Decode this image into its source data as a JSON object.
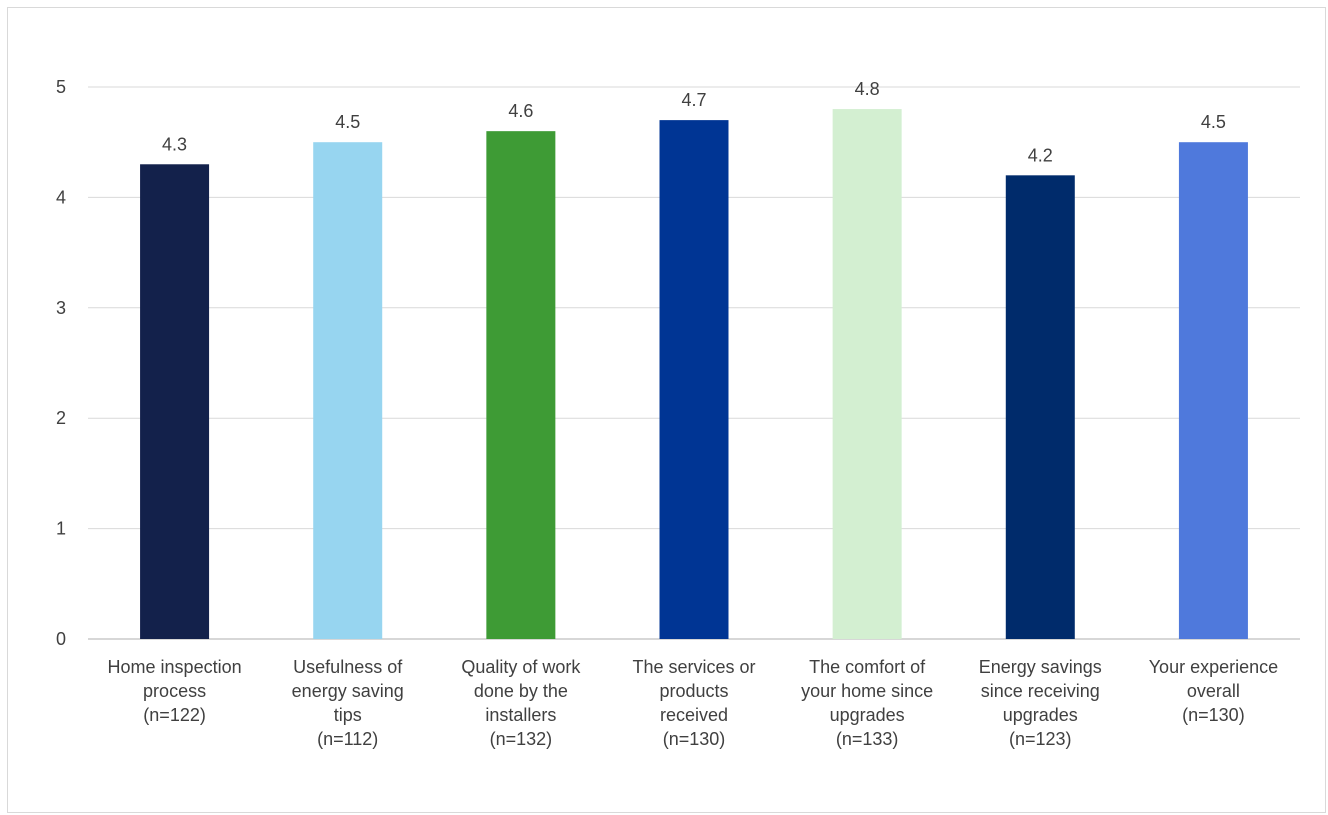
{
  "chart_data": {
    "type": "bar",
    "title": "",
    "xlabel": "",
    "ylabel": "",
    "ylim": [
      0,
      5
    ],
    "yticks": [
      0,
      1,
      2,
      3,
      4,
      5
    ],
    "grid": true,
    "legend": "none",
    "categories": [
      [
        "Home inspection",
        "process",
        "(n=122)"
      ],
      [
        "Usefulness of",
        "energy saving",
        "tips",
        "(n=112)"
      ],
      [
        "Quality of work",
        "done by the",
        "installers",
        "(n=132)"
      ],
      [
        "The services or",
        "products",
        "received",
        "(n=130)"
      ],
      [
        "The comfort of",
        "your home since",
        "upgrades",
        "(n=133)"
      ],
      [
        "Energy savings",
        "since receiving",
        "upgrades",
        "(n=123)"
      ],
      [
        "Your experience",
        "overall",
        "(n=130)"
      ]
    ],
    "values": [
      4.3,
      4.5,
      4.6,
      4.7,
      4.8,
      4.2,
      4.5
    ],
    "data_labels": [
      "4.3",
      "4.5",
      "4.6",
      "4.7",
      "4.8",
      "4.2",
      "4.5"
    ],
    "colors": [
      "#13214b",
      "#97d5f0",
      "#3e9b35",
      "#003594",
      "#d3efd1",
      "#002b6b",
      "#4f79dc"
    ]
  }
}
